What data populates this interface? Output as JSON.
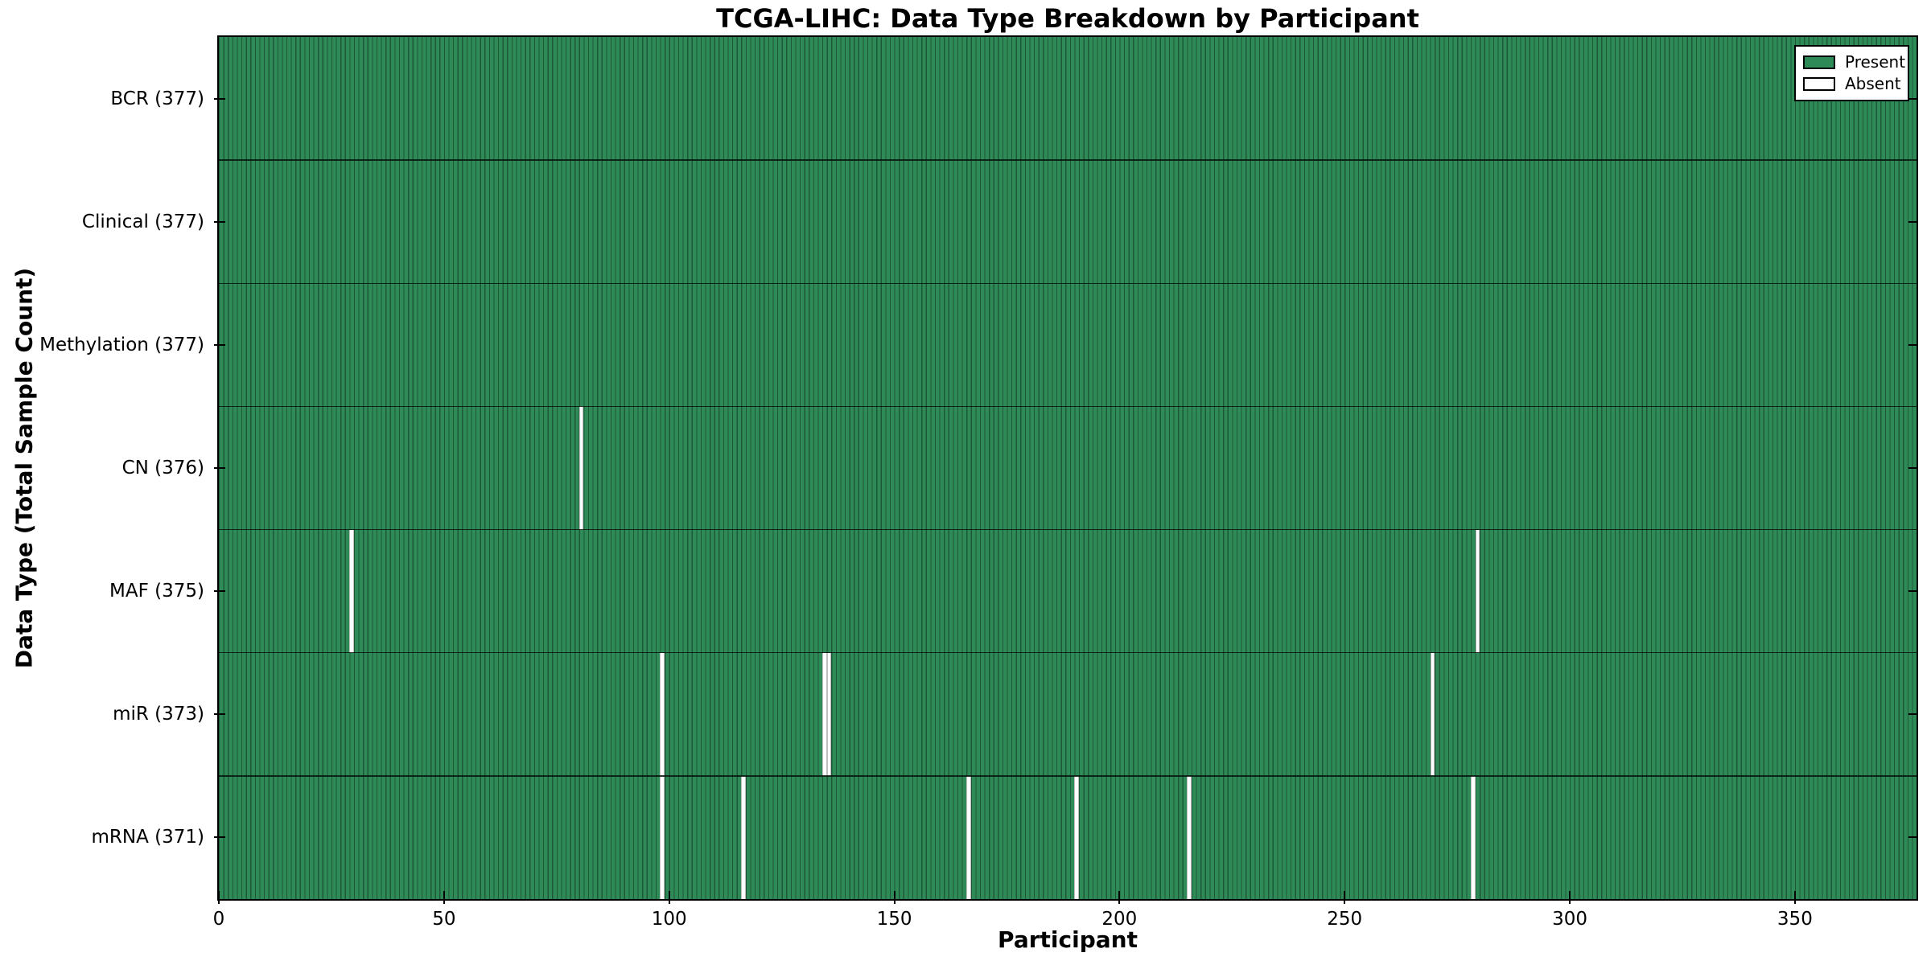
{
  "figure": {
    "title": "TCGA-LIHC: Data Type Breakdown by Participant",
    "xlabel": "Participant",
    "ylabel": "Data Type (Total Sample Count)"
  },
  "legend": {
    "items": [
      {
        "label": "Present",
        "color": "#2e8b57"
      },
      {
        "label": "Absent",
        "color": "#ffffff"
      }
    ]
  },
  "chart_data": {
    "type": "heatmap",
    "title": "TCGA-LIHC: Data Type Breakdown by Participant",
    "xlabel": "Participant",
    "ylabel": "Data Type (Total Sample Count)",
    "legend_position": "upper right",
    "grid": false,
    "n_participants": 377,
    "xlim": [
      0,
      377
    ],
    "x_ticks": [
      0,
      50,
      100,
      150,
      200,
      250,
      300,
      350
    ],
    "rows": [
      {
        "label": "BCR (377)",
        "data_type": "BCR",
        "present_count": 377,
        "absent_participants": []
      },
      {
        "label": "Clinical (377)",
        "data_type": "Clinical",
        "present_count": 377,
        "absent_participants": []
      },
      {
        "label": "Methylation (377)",
        "data_type": "Methylation",
        "present_count": 377,
        "absent_participants": []
      },
      {
        "label": "CN (376)",
        "data_type": "CN",
        "present_count": 376,
        "absent_participants": [
          80
        ]
      },
      {
        "label": "MAF (375)",
        "data_type": "MAF",
        "present_count": 375,
        "absent_participants": [
          29,
          279
        ]
      },
      {
        "label": "miR (373)",
        "data_type": "miR",
        "present_count": 373,
        "absent_participants": [
          98,
          134,
          135,
          269
        ]
      },
      {
        "label": "mRNA (371)",
        "data_type": "mRNA",
        "present_count": 371,
        "absent_participants": [
          98,
          116,
          166,
          190,
          215,
          278
        ]
      }
    ],
    "colors": {
      "present_fill": "#2e8b57",
      "bar_edge": "#1d5737",
      "absent_fill": "#ffffff",
      "axis": "#000000"
    }
  }
}
